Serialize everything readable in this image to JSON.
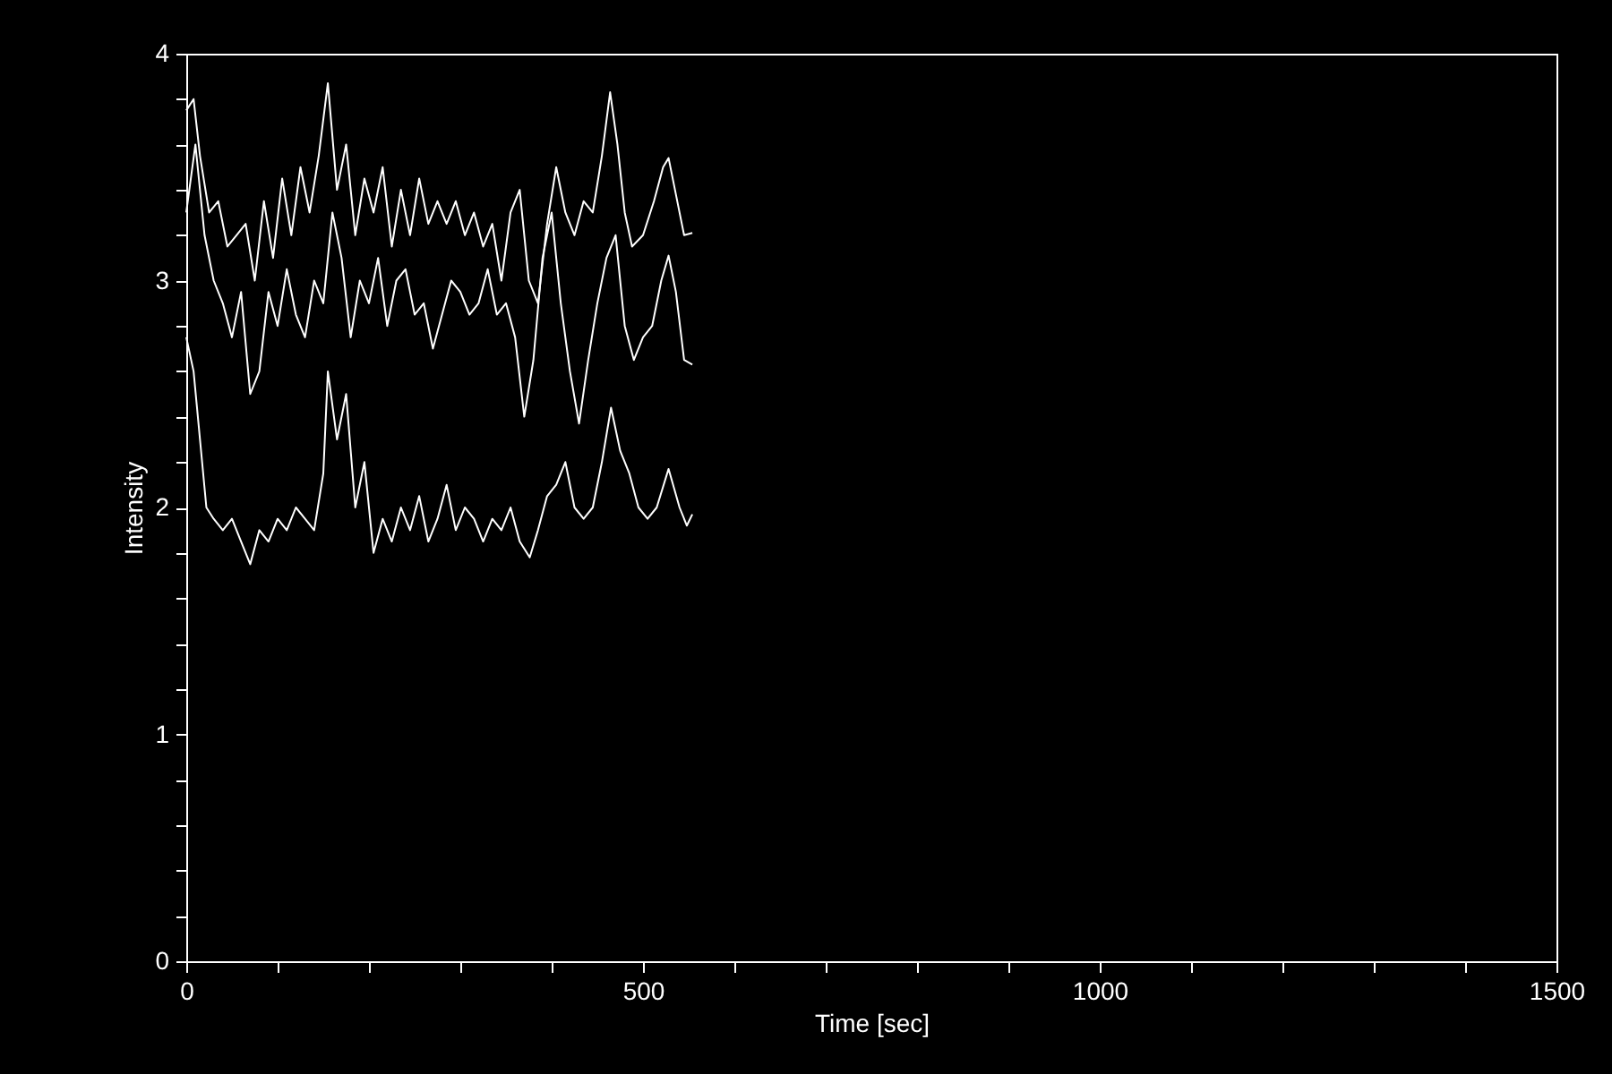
{
  "chart_data": {
    "type": "line",
    "xlabel": "Time [sec]",
    "ylabel": "Intensity",
    "xlim": [
      0,
      1500
    ],
    "ylim": [
      0,
      4
    ],
    "xticks": [
      0,
      {
        "value": 100,
        "label": null
      },
      {
        "value": 200,
        "label": null
      },
      {
        "value": 300,
        "label": null
      },
      {
        "value": 400,
        "label": null
      },
      500,
      {
        "value": 600,
        "label": null
      },
      {
        "value": 700,
        "label": null
      },
      {
        "value": 800,
        "label": null
      },
      {
        "value": 900,
        "label": null
      },
      1000,
      {
        "value": 1100,
        "label": null
      },
      {
        "value": 1200,
        "label": null
      },
      {
        "value": 1300,
        "label": null
      },
      {
        "value": 1400,
        "label": null
      },
      1500
    ],
    "yticks": [
      0,
      {
        "value": 0.2,
        "label": null
      },
      {
        "value": 0.4,
        "label": null
      },
      {
        "value": 0.6,
        "label": null
      },
      {
        "value": 0.8,
        "label": null
      },
      1,
      {
        "value": 1.2,
        "label": null
      },
      {
        "value": 1.4,
        "label": null
      },
      {
        "value": 1.6,
        "label": null
      },
      {
        "value": 1.8,
        "label": null
      },
      2,
      {
        "value": 2.2,
        "label": null
      },
      {
        "value": 2.4,
        "label": null
      },
      {
        "value": 2.6,
        "label": null
      },
      {
        "value": 2.8,
        "label": null
      },
      3,
      {
        "value": 3.2,
        "label": null
      },
      {
        "value": 3.4,
        "label": null
      },
      {
        "value": 3.6,
        "label": null
      },
      {
        "value": 3.8,
        "label": null
      },
      4
    ],
    "grid": false,
    "legend": false,
    "marker": "none",
    "line_style": "solid",
    "series": [
      {
        "color": "#ffffff",
        "x": [
          0,
          8,
          15,
          25,
          35,
          45,
          55,
          65,
          75,
          85,
          95,
          105,
          115,
          125,
          135,
          145,
          155,
          165,
          175,
          185,
          195,
          205,
          215,
          225,
          235,
          245,
          255,
          265,
          275,
          285,
          295,
          305,
          315,
          325,
          335,
          345,
          355,
          365,
          375,
          385,
          395,
          405,
          415,
          425,
          435,
          445,
          455,
          464,
          472,
          480,
          488,
          500,
          512,
          522,
          528,
          535,
          545,
          554
        ],
        "values": [
          3.75,
          3.8,
          3.55,
          3.3,
          3.35,
          3.15,
          3.2,
          3.25,
          3.0,
          3.35,
          3.1,
          3.45,
          3.2,
          3.5,
          3.3,
          3.55,
          3.87,
          3.4,
          3.6,
          3.2,
          3.45,
          3.3,
          3.5,
          3.15,
          3.4,
          3.2,
          3.45,
          3.25,
          3.35,
          3.25,
          3.35,
          3.2,
          3.3,
          3.15,
          3.25,
          3.0,
          3.3,
          3.4,
          3.0,
          2.9,
          3.25,
          3.5,
          3.3,
          3.2,
          3.35,
          3.3,
          3.55,
          3.83,
          3.6,
          3.3,
          3.15,
          3.2,
          3.35,
          3.5,
          3.54,
          3.4,
          3.2,
          3.21
        ]
      },
      {
        "color": "#ffffff",
        "x": [
          0,
          10,
          20,
          30,
          40,
          50,
          60,
          70,
          80,
          90,
          100,
          110,
          120,
          130,
          140,
          150,
          160,
          170,
          180,
          190,
          200,
          210,
          220,
          230,
          240,
          250,
          260,
          270,
          280,
          290,
          300,
          310,
          320,
          330,
          340,
          350,
          360,
          370,
          380,
          390,
          400,
          410,
          420,
          430,
          440,
          450,
          460,
          470,
          480,
          490,
          500,
          510,
          520,
          528,
          536,
          545,
          554
        ],
        "values": [
          3.3,
          3.6,
          3.2,
          3.0,
          2.9,
          2.75,
          2.95,
          2.5,
          2.6,
          2.95,
          2.8,
          3.05,
          2.85,
          2.75,
          3.0,
          2.9,
          3.3,
          3.1,
          2.75,
          3.0,
          2.9,
          3.1,
          2.8,
          3.0,
          3.05,
          2.85,
          2.9,
          2.7,
          2.85,
          3.0,
          2.95,
          2.85,
          2.9,
          3.05,
          2.85,
          2.9,
          2.75,
          2.4,
          2.65,
          3.1,
          3.3,
          2.9,
          2.6,
          2.37,
          2.65,
          2.9,
          3.1,
          3.2,
          2.8,
          2.65,
          2.75,
          2.8,
          3.0,
          3.11,
          2.95,
          2.65,
          2.63
        ]
      },
      {
        "color": "#ffffff",
        "x": [
          0,
          8,
          15,
          22,
          30,
          40,
          50,
          60,
          70,
          80,
          90,
          100,
          110,
          120,
          130,
          140,
          150,
          155,
          165,
          175,
          185,
          195,
          205,
          215,
          225,
          235,
          245,
          255,
          265,
          275,
          285,
          295,
          305,
          315,
          325,
          335,
          345,
          355,
          365,
          376,
          385,
          395,
          405,
          415,
          425,
          435,
          445,
          455,
          465,
          475,
          485,
          495,
          505,
          515,
          528,
          540,
          548,
          554
        ],
        "values": [
          2.75,
          2.6,
          2.3,
          2.0,
          1.95,
          1.9,
          1.95,
          1.85,
          1.75,
          1.9,
          1.85,
          1.95,
          1.9,
          2.0,
          1.95,
          1.9,
          2.15,
          2.6,
          2.3,
          2.5,
          2.0,
          2.2,
          1.8,
          1.95,
          1.85,
          2.0,
          1.9,
          2.05,
          1.85,
          1.95,
          2.1,
          1.9,
          2.0,
          1.95,
          1.85,
          1.95,
          1.9,
          2.0,
          1.85,
          1.78,
          1.9,
          2.05,
          2.1,
          2.2,
          2.0,
          1.95,
          2.0,
          2.2,
          2.44,
          2.25,
          2.15,
          2.0,
          1.95,
          2.0,
          2.17,
          2.0,
          1.92,
          1.97
        ]
      }
    ]
  }
}
